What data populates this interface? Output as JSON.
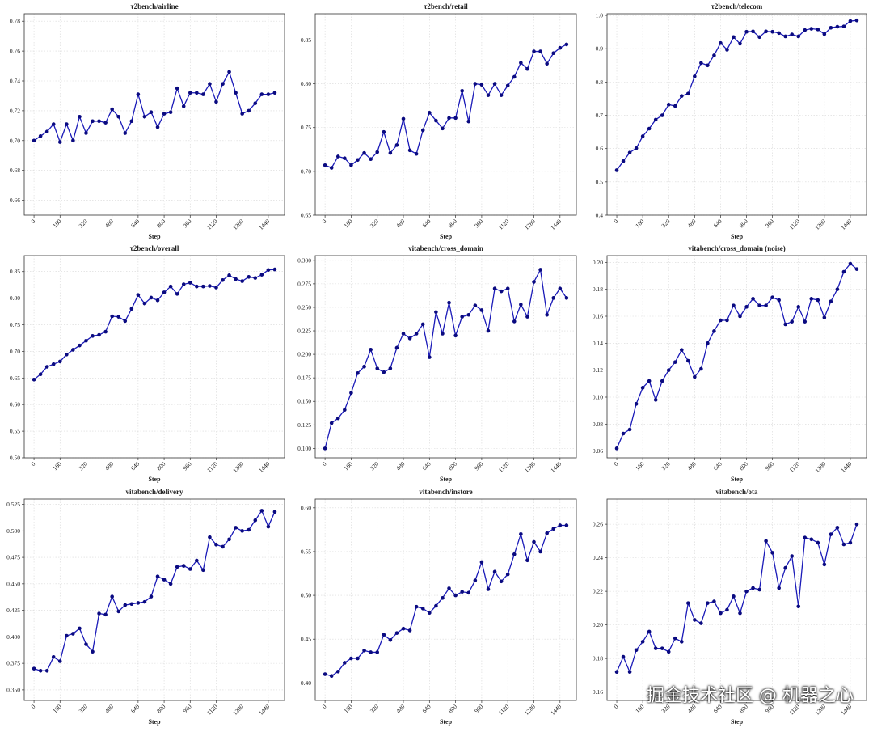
{
  "chart_data": [
    {
      "type": "line",
      "title": "τ2bench/airline",
      "x_label": "Step",
      "color": "#1a1ab8",
      "grid": true,
      "x": [
        0,
        40,
        80,
        120,
        160,
        200,
        240,
        280,
        320,
        360,
        400,
        440,
        480,
        520,
        560,
        600,
        640,
        680,
        720,
        760,
        800,
        840,
        880,
        920,
        960,
        1000,
        1040,
        1080,
        1120,
        1160,
        1200,
        1240,
        1280,
        1320,
        1360,
        1400,
        1440,
        1480
      ],
      "values": [
        0.7,
        0.703,
        0.706,
        0.711,
        0.699,
        0.711,
        0.7,
        0.716,
        0.705,
        0.713,
        0.713,
        0.712,
        0.721,
        0.716,
        0.705,
        0.713,
        0.731,
        0.716,
        0.719,
        0.709,
        0.718,
        0.719,
        0.735,
        0.723,
        0.732,
        0.732,
        0.731,
        0.738,
        0.726,
        0.738,
        0.746,
        0.732,
        0.718,
        0.72,
        0.725,
        0.731,
        0.731,
        0.732
      ],
      "xlim": [
        -60,
        1540
      ],
      "xticks": [
        0,
        160,
        320,
        480,
        640,
        800,
        960,
        1120,
        1280,
        1440
      ],
      "ylim": [
        0.65,
        0.785
      ],
      "yticks": [
        0.66,
        0.68,
        {
          "value": 0.7,
          "label": "0.70"
        },
        0.72,
        0.74,
        0.76,
        0.78
      ]
    },
    {
      "type": "line",
      "title": "τ2bench/retail",
      "x_label": "Step",
      "color": "#1a1ab8",
      "grid": true,
      "x": [
        0,
        40,
        80,
        120,
        160,
        200,
        240,
        280,
        320,
        360,
        400,
        440,
        480,
        520,
        560,
        600,
        640,
        680,
        720,
        760,
        800,
        840,
        880,
        920,
        960,
        1000,
        1040,
        1080,
        1120,
        1160,
        1200,
        1240,
        1280,
        1320,
        1360,
        1400,
        1440,
        1480
      ],
      "values": [
        0.707,
        0.704,
        0.717,
        0.715,
        0.707,
        0.713,
        0.721,
        0.714,
        0.722,
        0.745,
        0.721,
        0.73,
        0.76,
        0.724,
        0.72,
        0.747,
        0.767,
        0.758,
        0.749,
        0.761,
        0.761,
        0.792,
        0.757,
        0.8,
        0.799,
        0.787,
        0.8,
        0.787,
        0.798,
        0.808,
        0.824,
        0.817,
        0.837,
        0.837,
        0.823,
        0.835,
        0.841,
        0.845
      ],
      "xlim": [
        -60,
        1540
      ],
      "xticks": [
        0,
        160,
        320,
        480,
        640,
        800,
        960,
        1120,
        1280,
        1440
      ],
      "ylim": [
        0.65,
        0.88
      ],
      "yticks": [
        0.65,
        {
          "value": 0.7,
          "label": "0.70"
        },
        0.75,
        {
          "value": 0.8,
          "label": "0.80"
        },
        0.85
      ]
    },
    {
      "type": "line",
      "title": "τ2bench/telecom",
      "x_label": "Step",
      "color": "#1a1ab8",
      "grid": true,
      "x": [
        0,
        40,
        80,
        120,
        160,
        200,
        240,
        280,
        320,
        360,
        400,
        440,
        480,
        520,
        560,
        600,
        640,
        680,
        720,
        760,
        800,
        840,
        880,
        920,
        960,
        1000,
        1040,
        1080,
        1120,
        1160,
        1200,
        1240,
        1280,
        1320,
        1360,
        1400,
        1440,
        1480
      ],
      "values": [
        0.535,
        0.562,
        0.588,
        0.601,
        0.637,
        0.66,
        0.687,
        0.7,
        0.732,
        0.728,
        0.758,
        0.765,
        0.817,
        0.857,
        0.85,
        0.88,
        0.917,
        0.897,
        0.935,
        0.915,
        0.951,
        0.952,
        0.935,
        0.952,
        0.951,
        0.947,
        0.937,
        0.943,
        0.937,
        0.956,
        0.96,
        0.958,
        0.944,
        0.963,
        0.966,
        0.967,
        0.983,
        0.985
      ],
      "xlim": [
        -60,
        1540
      ],
      "xticks": [
        0,
        160,
        320,
        480,
        640,
        800,
        960,
        1120,
        1280,
        1440
      ],
      "ylim": [
        0.4,
        1.005
      ],
      "yticks": [
        0.4,
        0.5,
        0.6,
        0.7,
        0.8,
        0.9,
        {
          "value": 1,
          "label": "1.0"
        }
      ]
    },
    {
      "type": "line",
      "title": "τ2bench/overall",
      "x_label": "Step",
      "color": "#1a1ab8",
      "grid": true,
      "x": [
        0,
        40,
        80,
        120,
        160,
        200,
        240,
        280,
        320,
        360,
        400,
        440,
        480,
        520,
        560,
        600,
        640,
        680,
        720,
        760,
        800,
        840,
        880,
        920,
        960,
        1000,
        1040,
        1080,
        1120,
        1160,
        1200,
        1240,
        1280,
        1320,
        1360,
        1400,
        1440,
        1480
      ],
      "values": [
        0.647,
        0.657,
        0.671,
        0.676,
        0.681,
        0.694,
        0.703,
        0.711,
        0.72,
        0.729,
        0.731,
        0.737,
        0.766,
        0.765,
        0.757,
        0.78,
        0.806,
        0.79,
        0.801,
        0.796,
        0.811,
        0.822,
        0.808,
        0.826,
        0.829,
        0.822,
        0.822,
        0.823,
        0.82,
        0.834,
        0.843,
        0.836,
        0.832,
        0.84,
        0.838,
        0.844,
        0.853,
        0.854
      ],
      "xlim": [
        -60,
        1540
      ],
      "xticks": [
        0,
        160,
        320,
        480,
        640,
        800,
        960,
        1120,
        1280,
        1440
      ],
      "ylim": [
        0.5,
        0.88
      ],
      "yticks": [
        {
          "value": 0.5,
          "label": "0.50"
        },
        0.55,
        {
          "value": 0.6,
          "label": "0.60"
        },
        0.65,
        {
          "value": 0.7,
          "label": "0.70"
        },
        0.75,
        {
          "value": 0.8,
          "label": "0.80"
        },
        0.85
      ]
    },
    {
      "type": "line",
      "title": "vitabench/cross_domain",
      "x_label": "Step",
      "color": "#1a1ab8",
      "grid": true,
      "x": [
        0,
        40,
        80,
        120,
        160,
        200,
        240,
        280,
        320,
        360,
        400,
        440,
        480,
        520,
        560,
        600,
        640,
        680,
        720,
        760,
        800,
        840,
        880,
        920,
        960,
        1000,
        1040,
        1080,
        1120,
        1160,
        1200,
        1240,
        1280,
        1320,
        1360,
        1400,
        1440,
        1480
      ],
      "values": [
        0.1,
        0.127,
        0.132,
        0.141,
        0.159,
        0.18,
        0.187,
        0.205,
        0.185,
        0.181,
        0.185,
        0.207,
        0.222,
        0.217,
        0.222,
        0.232,
        0.197,
        0.245,
        0.222,
        0.255,
        0.22,
        0.24,
        0.242,
        0.252,
        0.247,
        0.225,
        0.27,
        0.267,
        0.27,
        0.235,
        0.253,
        0.24,
        0.277,
        0.29,
        0.242,
        0.26,
        0.27,
        0.26
      ],
      "xlim": [
        -60,
        1540
      ],
      "xticks": [
        0,
        160,
        320,
        480,
        640,
        800,
        960,
        1120,
        1280,
        1440
      ],
      "ylim": [
        0.09,
        0.305
      ],
      "yticks": [
        {
          "value": 0.1,
          "label": "0.100"
        },
        0.125,
        {
          "value": 0.15,
          "label": "0.150"
        },
        0.175,
        {
          "value": 0.2,
          "label": "0.200"
        },
        0.225,
        {
          "value": 0.25,
          "label": "0.250"
        },
        0.275,
        {
          "value": 0.3,
          "label": "0.300"
        }
      ]
    },
    {
      "type": "line",
      "title": "vitabench/cross_domain (noise)",
      "x_label": "Step",
      "color": "#1a1ab8",
      "grid": true,
      "x": [
        0,
        40,
        80,
        120,
        160,
        200,
        240,
        280,
        320,
        360,
        400,
        440,
        480,
        520,
        560,
        600,
        640,
        680,
        720,
        760,
        800,
        840,
        880,
        920,
        960,
        1000,
        1040,
        1080,
        1120,
        1160,
        1200,
        1240,
        1280,
        1320,
        1360,
        1400,
        1440,
        1480
      ],
      "values": [
        0.062,
        0.073,
        0.076,
        0.095,
        0.107,
        0.112,
        0.098,
        0.112,
        0.12,
        0.126,
        0.135,
        0.127,
        0.115,
        0.121,
        0.14,
        0.149,
        0.157,
        0.157,
        0.168,
        0.16,
        0.167,
        0.173,
        0.168,
        0.168,
        0.174,
        0.172,
        0.154,
        0.156,
        0.167,
        0.156,
        0.173,
        0.172,
        0.159,
        0.171,
        0.18,
        0.193,
        0.199,
        0.195
      ],
      "xlim": [
        -60,
        1540
      ],
      "xticks": [
        0,
        160,
        320,
        480,
        640,
        800,
        960,
        1120,
        1280,
        1440
      ],
      "ylim": [
        0.055,
        0.205
      ],
      "yticks": [
        0.06,
        0.08,
        {
          "value": 0.1,
          "label": "0.10"
        },
        0.12,
        0.14,
        0.16,
        0.18,
        {
          "value": 0.2,
          "label": "0.20"
        }
      ]
    },
    {
      "type": "line",
      "title": "vitabench/delivery",
      "x_label": "Step",
      "color": "#1a1ab8",
      "grid": true,
      "x": [
        0,
        40,
        80,
        120,
        160,
        200,
        240,
        280,
        320,
        360,
        400,
        440,
        480,
        520,
        560,
        600,
        640,
        680,
        720,
        760,
        800,
        840,
        880,
        920,
        960,
        1000,
        1040,
        1080,
        1120,
        1160,
        1200,
        1240,
        1280,
        1320,
        1360,
        1400,
        1440,
        1480
      ],
      "values": [
        0.37,
        0.368,
        0.368,
        0.381,
        0.377,
        0.401,
        0.403,
        0.408,
        0.393,
        0.386,
        0.422,
        0.421,
        0.438,
        0.424,
        0.43,
        0.431,
        0.432,
        0.433,
        0.438,
        0.457,
        0.454,
        0.45,
        0.466,
        0.467,
        0.464,
        0.472,
        0.463,
        0.494,
        0.487,
        0.485,
        0.492,
        0.503,
        0.5,
        0.501,
        0.51,
        0.519,
        0.504,
        0.518
      ],
      "xlim": [
        -60,
        1540
      ],
      "xticks": [
        0,
        160,
        320,
        480,
        640,
        800,
        960,
        1120,
        1280,
        1440
      ],
      "ylim": [
        0.34,
        0.53
      ],
      "yticks": [
        {
          "value": 0.35,
          "label": "0.350"
        },
        0.375,
        {
          "value": 0.4,
          "label": "0.400"
        },
        0.425,
        {
          "value": 0.45,
          "label": "0.450"
        },
        0.475,
        {
          "value": 0.5,
          "label": "0.500"
        },
        0.525
      ]
    },
    {
      "type": "line",
      "title": "vitabench/instore",
      "x_label": "Step",
      "color": "#1a1ab8",
      "grid": true,
      "x": [
        0,
        40,
        80,
        120,
        160,
        200,
        240,
        280,
        320,
        360,
        400,
        440,
        480,
        520,
        560,
        600,
        640,
        680,
        720,
        760,
        800,
        840,
        880,
        920,
        960,
        1000,
        1040,
        1080,
        1120,
        1160,
        1200,
        1240,
        1280,
        1320,
        1360,
        1400,
        1440,
        1480
      ],
      "values": [
        0.41,
        0.408,
        0.413,
        0.423,
        0.428,
        0.428,
        0.437,
        0.435,
        0.435,
        0.455,
        0.449,
        0.457,
        0.462,
        0.46,
        0.487,
        0.485,
        0.48,
        0.488,
        0.497,
        0.508,
        0.5,
        0.504,
        0.503,
        0.517,
        0.538,
        0.507,
        0.527,
        0.516,
        0.524,
        0.547,
        0.57,
        0.54,
        0.561,
        0.55,
        0.571,
        0.576,
        0.58,
        0.58
      ],
      "xlim": [
        -60,
        1540
      ],
      "xticks": [
        0,
        160,
        320,
        480,
        640,
        800,
        960,
        1120,
        1280,
        1440
      ],
      "ylim": [
        0.38,
        0.61
      ],
      "yticks": [
        {
          "value": 0.4,
          "label": "0.40"
        },
        0.45,
        {
          "value": 0.5,
          "label": "0.50"
        },
        0.55,
        {
          "value": 0.6,
          "label": "0.60"
        }
      ]
    },
    {
      "type": "line",
      "title": "vitabench/ota",
      "x_label": "Step",
      "color": "#1a1ab8",
      "grid": true,
      "x": [
        0,
        40,
        80,
        120,
        160,
        200,
        240,
        280,
        320,
        360,
        400,
        440,
        480,
        520,
        560,
        600,
        640,
        680,
        720,
        760,
        800,
        840,
        880,
        920,
        960,
        1000,
        1040,
        1080,
        1120,
        1160,
        1200,
        1240,
        1280,
        1320,
        1360,
        1400,
        1440,
        1480
      ],
      "values": [
        0.172,
        0.181,
        0.172,
        0.185,
        0.19,
        0.196,
        0.186,
        0.186,
        0.184,
        0.192,
        0.19,
        0.213,
        0.203,
        0.201,
        0.213,
        0.214,
        0.207,
        0.209,
        0.217,
        0.207,
        0.22,
        0.222,
        0.221,
        0.25,
        0.243,
        0.222,
        0.234,
        0.241,
        0.211,
        0.252,
        0.251,
        0.249,
        0.236,
        0.254,
        0.258,
        0.248,
        0.249,
        0.26
      ],
      "xlim": [
        -60,
        1540
      ],
      "xticks": [
        0,
        160,
        320,
        480,
        640,
        800,
        960,
        1120,
        1280,
        1440
      ],
      "ylim": [
        0.155,
        0.275
      ],
      "yticks": [
        0.16,
        0.18,
        {
          "value": 0.2,
          "label": "0.20"
        },
        0.22,
        0.24,
        0.26
      ]
    }
  ],
  "watermark": "掘金技术社区 @ 机器之心"
}
